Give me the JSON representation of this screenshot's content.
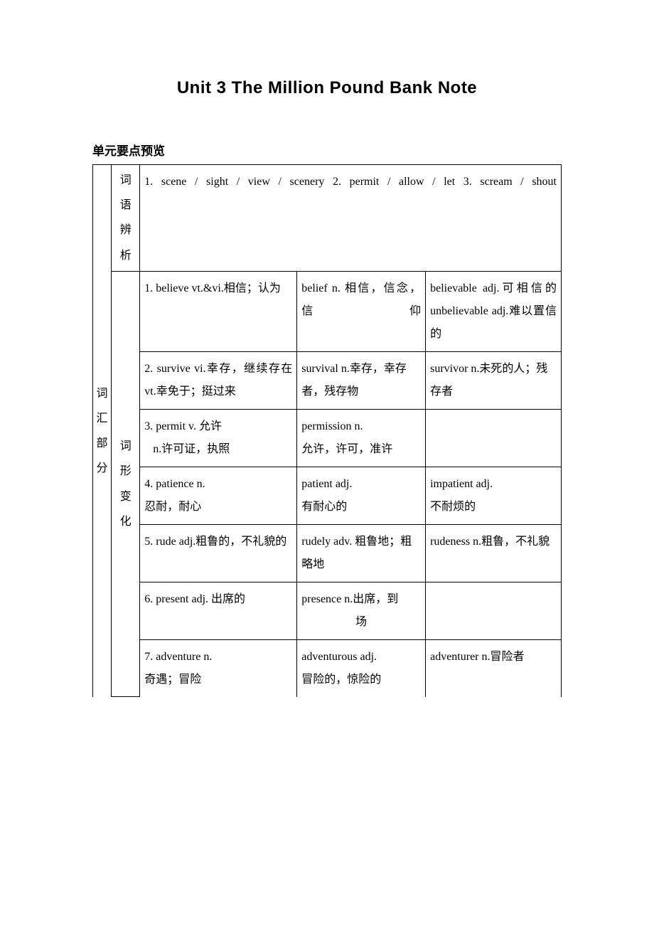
{
  "page": {
    "title": "Unit 3  The Million Pound Bank Note",
    "section_header": "单元要点预览",
    "background_color": "#ffffff",
    "text_color": "#000000",
    "border_color": "#000000"
  },
  "table": {
    "left_label": "词汇部分",
    "row1": {
      "sub_label": "词语辨析",
      "content": "1. scene / sight / view / scenery       2. permit / allow / let        3. scream / shout"
    },
    "row2": {
      "sub_label": "词形变化",
      "items": [
        {
          "c1": "1. believe vt.&vi.相信；认为",
          "c2": "belief n. 相信，信念，信仰",
          "c3": "believable adj.可相信的  unbelievable adj.难以置信的",
          "c2_justify": true,
          "c3_justify": true
        },
        {
          "c1": "2. survive vi.幸存，继续存在 vt.幸免于；挺过来",
          "c2": "survival n.幸存，幸存者，残存物",
          "c3": "survivor n.未死的人；残存者",
          "c1_justify": true
        },
        {
          "c1": "3. permit v. 允许\n   n.许可证，执照",
          "c2": "permission n.\n允许，许可，准许",
          "c3": ""
        },
        {
          "c1": "4. patience n.\n忍耐，耐心",
          "c2": "patient adj.\n有耐心的",
          "c3": "impatient adj.\n不耐烦的"
        },
        {
          "c1": "5. rude adj.粗鲁的，不礼貌的",
          "c2": "rudely adv. 粗鲁地；粗略地",
          "c3": "rudeness n.粗鲁，不礼貌",
          "c1_justify": true,
          "c3_justify": true
        },
        {
          "c1": "6. present adj. 出席的",
          "c2": "presence n.出席，到场",
          "c3": "",
          "c2_center_last": true
        },
        {
          "c1": "7. adventure n.\n奇遇；冒险",
          "c2": "adventurous adj.\n冒险的，惊险的",
          "c3": "adventurer n.冒险者"
        }
      ]
    }
  }
}
